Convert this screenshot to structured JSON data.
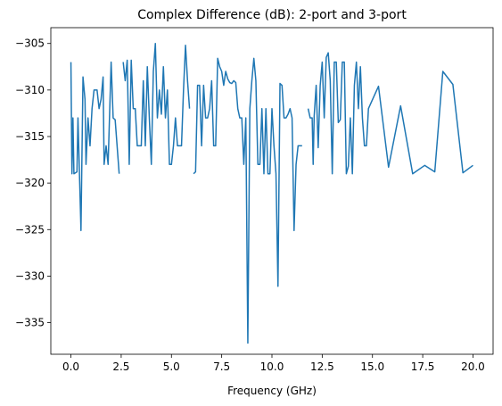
{
  "chart_data": {
    "type": "line",
    "title": "Complex Difference (dB): 2-port and 3-port",
    "xlabel": "Frequency (GHz)",
    "color": "#1f77b4",
    "x": [
      0.0,
      0.05,
      0.1,
      0.15,
      0.3,
      0.35,
      0.5,
      0.6,
      0.7,
      0.75,
      0.85,
      0.95,
      1.05,
      1.15,
      1.3,
      1.4,
      1.5,
      1.6,
      1.65,
      1.75,
      1.85,
      2.0,
      2.1,
      2.2,
      2.4,
      null,
      2.6,
      2.7,
      2.8,
      2.9,
      3.0,
      3.1,
      3.2,
      3.3,
      3.4,
      3.5,
      3.6,
      3.7,
      3.8,
      3.9,
      4.0,
      4.1,
      4.2,
      4.3,
      4.4,
      4.5,
      4.6,
      4.7,
      4.8,
      4.9,
      5.0,
      5.1,
      5.2,
      5.3,
      5.4,
      5.5,
      5.6,
      5.7,
      5.8,
      5.9,
      null,
      6.1,
      6.2,
      6.3,
      6.4,
      6.5,
      6.6,
      6.7,
      6.8,
      6.9,
      7.0,
      7.1,
      7.2,
      7.3,
      7.4,
      7.5,
      7.6,
      7.7,
      7.8,
      7.9,
      8.0,
      8.1,
      8.2,
      8.3,
      8.4,
      8.5,
      8.6,
      8.7,
      8.8,
      8.9,
      9.0,
      9.1,
      9.2,
      9.3,
      9.4,
      9.5,
      9.6,
      9.7,
      9.8,
      9.9,
      10.0,
      10.1,
      10.2,
      10.3,
      10.4,
      10.5,
      10.6,
      10.7,
      10.8,
      10.9,
      11.0,
      11.1,
      11.2,
      11.3,
      11.4,
      11.5,
      null,
      11.8,
      11.9,
      12.0,
      12.05,
      12.1,
      12.2,
      12.3,
      12.4,
      12.5,
      12.6,
      12.7,
      12.8,
      12.9,
      13.0,
      13.1,
      13.2,
      13.3,
      13.4,
      13.5,
      13.6,
      13.7,
      13.8,
      13.9,
      14.0,
      14.1,
      14.2,
      14.3,
      14.4,
      14.5,
      14.6,
      14.7,
      14.8,
      15.3,
      15.8,
      16.4,
      17.0,
      17.6,
      18.1,
      18.5,
      19.0,
      19.5,
      20.0
    ],
    "values": [
      -307,
      -319,
      -313,
      -319,
      -318.8,
      -313,
      -325.1,
      -308.6,
      -311,
      -318,
      -313,
      -316,
      -312,
      -310,
      -310,
      -312,
      -311,
      -308.6,
      -318,
      -316,
      -318,
      -307,
      -313,
      -313.2,
      -319,
      null,
      -307,
      -309,
      -306.8,
      -318,
      -306.8,
      -312,
      -312,
      -316,
      -316,
      -316,
      -309,
      -316,
      -307.5,
      -313,
      -318,
      -308,
      -305,
      -313,
      -310,
      -312.6,
      -307.5,
      -313,
      -310,
      -318,
      -318,
      -316,
      -313,
      -316,
      -316,
      -316,
      -310,
      -305.2,
      -309,
      -312,
      null,
      -319,
      -318.8,
      -309.5,
      -309.5,
      -316,
      -309.5,
      -313,
      -313,
      -312,
      -309,
      -316,
      -316,
      -306.6,
      -307.5,
      -308,
      -309.5,
      -308,
      -308.8,
      -309.2,
      -309.3,
      -309,
      -309.2,
      -312,
      -313,
      -313,
      -318,
      -313,
      -337.2,
      -312,
      -309,
      -306.6,
      -309,
      -318,
      -318,
      -312,
      -319,
      -312,
      -319,
      -319,
      -312,
      -316,
      -319,
      -331.1,
      -309.3,
      -309.5,
      -313,
      -313,
      -312.6,
      -312,
      -313,
      -325.1,
      -318,
      -316,
      -316,
      -316,
      null,
      -312,
      -313,
      -313,
      -318,
      -312.8,
      -309.5,
      -316.2,
      -309.5,
      -307,
      -313,
      -306.5,
      -306,
      -309,
      -319,
      -307,
      -307,
      -313.5,
      -313.2,
      -307,
      -307,
      -319,
      -318.2,
      -313,
      -319,
      -309.5,
      -307,
      -312,
      -307.5,
      -313,
      -316,
      -316,
      -312,
      -309.6,
      -318.3,
      -311.7,
      -319,
      -318.1,
      -318.8,
      -308,
      -309.4,
      -318.9,
      -318.1
    ],
    "xlim": [
      -1,
      21
    ],
    "ylim": [
      -338.4,
      -303.3
    ],
    "xticks": [
      {
        "value": 0,
        "label": "0.0"
      },
      {
        "value": 2.5,
        "label": "2.5"
      },
      {
        "value": 5,
        "label": "5.0"
      },
      {
        "value": 7.5,
        "label": "7.5"
      },
      {
        "value": 10,
        "label": "10.0"
      },
      {
        "value": 12.5,
        "label": "12.5"
      },
      {
        "value": 15,
        "label": "15.0"
      },
      {
        "value": 17.5,
        "label": "17.5"
      },
      {
        "value": 20,
        "label": "20.0"
      }
    ],
    "yticks": [
      {
        "value": -305,
        "label": "−305"
      },
      {
        "value": -310,
        "label": "−310"
      },
      {
        "value": -315,
        "label": "−315"
      },
      {
        "value": -320,
        "label": "−320"
      },
      {
        "value": -325,
        "label": "−325"
      },
      {
        "value": -330,
        "label": "−330"
      },
      {
        "value": -335,
        "label": "−335"
      }
    ]
  }
}
